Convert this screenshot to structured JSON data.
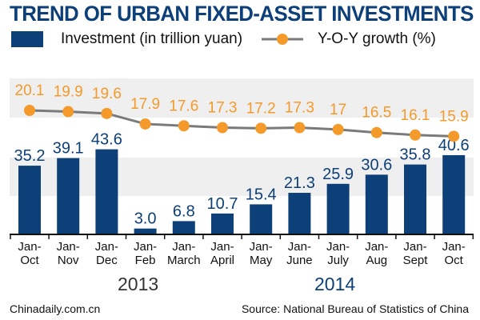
{
  "chart_data": {
    "type": "bar+line",
    "title": "TREND OF URBAN FIXED-ASSET INVESTMENTS",
    "categories": [
      [
        "Jan-",
        "Oct"
      ],
      [
        "Jan-",
        "Nov"
      ],
      [
        "Jan-",
        "Dec"
      ],
      [
        "Jan-",
        "Feb"
      ],
      [
        "Jan-",
        "March"
      ],
      [
        "Jan-",
        "April"
      ],
      [
        "Jan-",
        "May"
      ],
      [
        "Jan-",
        "June"
      ],
      [
        "Jan-",
        "July"
      ],
      [
        "Jan-",
        "Aug"
      ],
      [
        "Jan-",
        "Sept"
      ],
      [
        "Jan-",
        "Oct"
      ]
    ],
    "years": [
      "2013",
      "2014"
    ],
    "series": [
      {
        "name": "Investment (in trillion yuan)",
        "type": "bar",
        "color": "#0d3f78",
        "values": [
          35.2,
          39.1,
          43.6,
          3.0,
          6.8,
          10.7,
          15.4,
          21.3,
          25.9,
          30.6,
          35.8,
          40.6
        ],
        "labels": [
          "35.2",
          "39.1",
          "43.6",
          "3.0",
          "6.8",
          "10.7",
          "15.4",
          "21.3",
          "25.9",
          "30.6",
          "35.8",
          "40.6"
        ]
      },
      {
        "name": "Y-O-Y growth (%)",
        "type": "line",
        "color": "#f39a2b",
        "line_color": "#7a7a7a",
        "values": [
          20.1,
          19.9,
          19.6,
          17.9,
          17.6,
          17.3,
          17.2,
          17.3,
          17,
          16.5,
          16.1,
          15.9
        ],
        "labels": [
          "20.1",
          "19.9",
          "19.6",
          "17.9",
          "17.6",
          "17.3",
          "17.2",
          "17.3",
          "17",
          "16.5",
          "16.1",
          "15.9"
        ]
      }
    ],
    "grid": false,
    "legend": "top"
  },
  "footer": {
    "left": "Chinadaily.com.cn",
    "right": "Source: National Bureau of Statistics of China"
  }
}
